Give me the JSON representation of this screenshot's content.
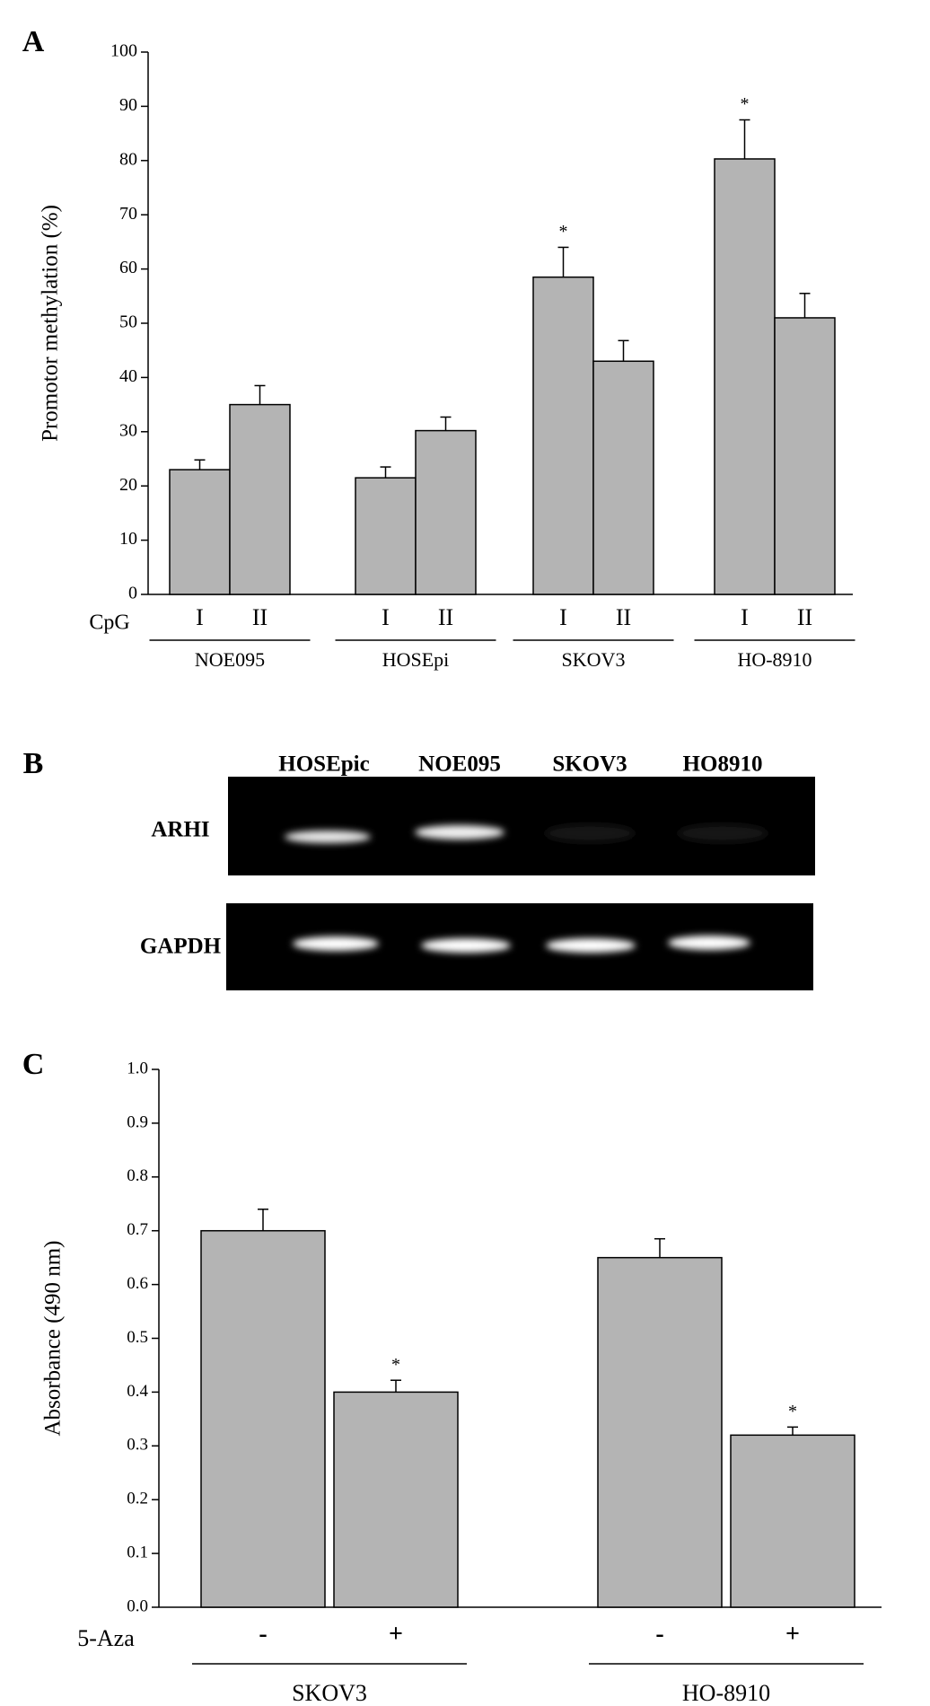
{
  "chart_data": [
    {
      "type": "bar",
      "panel_label": "A",
      "ylabel": "Promotor methylation (%)",
      "x_row_label": "CpG",
      "groups": [
        "NOE095",
        "HOSEpi",
        "SKOV3",
        "HO-8910"
      ],
      "categories": [
        "I",
        "II",
        "I",
        "II",
        "I",
        "II",
        "I",
        "II"
      ],
      "values": [
        23,
        35,
        21.5,
        30.2,
        58.5,
        43,
        80.3,
        51
      ],
      "errors": [
        1.8,
        3.5,
        2,
        2.5,
        5.5,
        3.8,
        7.2,
        4.5
      ],
      "significance": [
        null,
        null,
        null,
        null,
        "*",
        null,
        "*",
        null
      ],
      "color": "#b4b4b4",
      "ylim": [
        0,
        100
      ],
      "yticks": [
        0,
        10,
        20,
        30,
        40,
        50,
        60,
        70,
        80,
        90,
        100
      ]
    },
    {
      "type": "bar",
      "panel_label": "C",
      "ylabel": "Absorbance (490 nm)",
      "x_row_label": "5-Aza",
      "groups": [
        "SKOV3",
        "HO-8910"
      ],
      "categories": [
        "-",
        "+",
        "-",
        "+"
      ],
      "values": [
        0.7,
        0.4,
        0.65,
        0.32
      ],
      "errors": [
        0.04,
        0.022,
        0.035,
        0.015
      ],
      "significance": [
        null,
        "*",
        null,
        "*"
      ],
      "color": "#b4b4b4",
      "ylim": [
        0,
        1
      ],
      "yticks": [
        {
          "value": 0,
          "label": "0.0"
        },
        0.1,
        0.2,
        0.3,
        0.4,
        0.5,
        0.6,
        0.7,
        0.8,
        0.9,
        {
          "value": 1,
          "label": "1.0"
        }
      ]
    }
  ],
  "gel": {
    "panel_label": "B",
    "lanes": [
      "HOSEpic",
      "NOE095",
      "SKOV3",
      "HO8910"
    ],
    "rows": [
      "ARHI",
      "GAPDH"
    ]
  }
}
